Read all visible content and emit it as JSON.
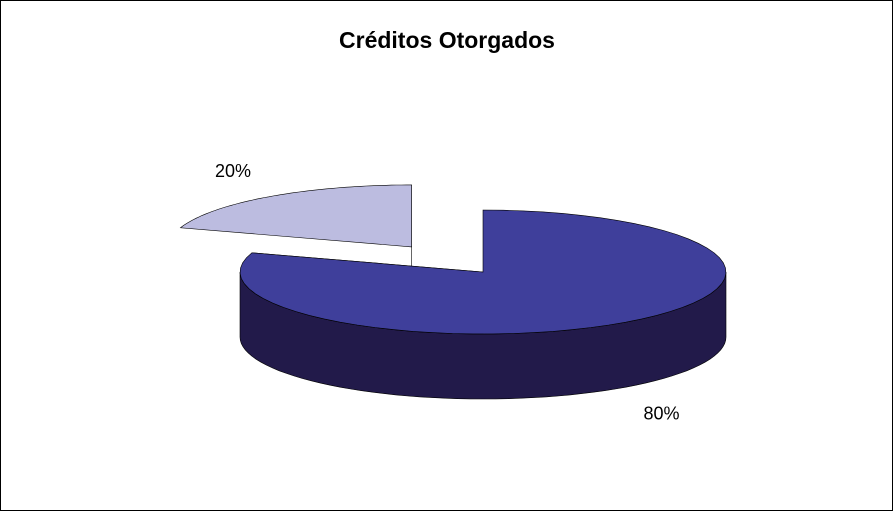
{
  "chart_data": {
    "type": "pie",
    "title": "Créditos Otorgados",
    "values": [
      80,
      20
    ],
    "value_labels": [
      "80%",
      "20%"
    ],
    "colors": [
      "#3f3f9b",
      "#bcbce0"
    ],
    "side_colors": [
      "#221a4a",
      "#666680"
    ]
  }
}
